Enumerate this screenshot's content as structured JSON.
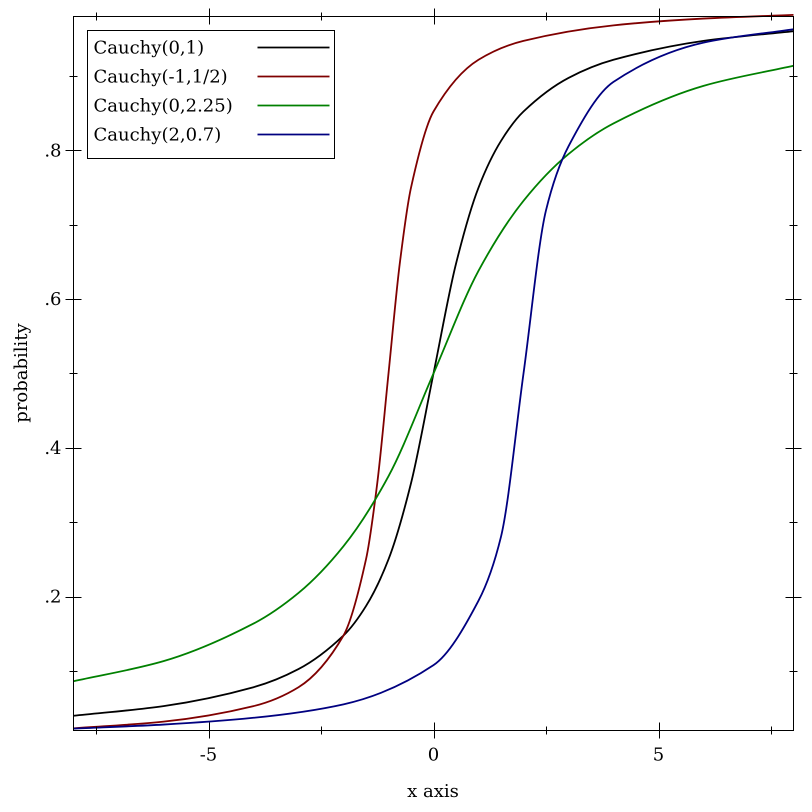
{
  "chart_data": {
    "type": "line",
    "title": "",
    "xlabel": "x axis",
    "ylabel": "probability",
    "xlim": [
      -8,
      8
    ],
    "ylim": [
      0.0198,
      0.9802
    ],
    "x_ticks_major": [
      -5,
      0,
      5
    ],
    "x_tick_labels": [
      "-5",
      "0",
      "5"
    ],
    "x_ticks_minor": [
      -7.5,
      -2.5,
      2.5,
      7.5
    ],
    "y_ticks_major": [
      0.2,
      0.4,
      0.6,
      0.8
    ],
    "y_tick_labels": [
      ".2",
      ".4",
      ".6",
      ".8"
    ],
    "y_ticks_minor": [
      0.1,
      0.3,
      0.5,
      0.7,
      0.9
    ],
    "grid": false,
    "legend_position": "top-left",
    "series": [
      {
        "name": "Cauchy(0,1)",
        "color": "#000000",
        "x": [
          -8,
          -6,
          -4,
          -3,
          -2,
          -1.5,
          -1,
          -0.5,
          0,
          0.5,
          1,
          1.5,
          2,
          3,
          4,
          6,
          8
        ],
        "values": [
          0.0396,
          0.0526,
          0.078,
          0.1024,
          0.1476,
          0.1872,
          0.25,
          0.3524,
          0.5,
          0.6476,
          0.75,
          0.8128,
          0.8524,
          0.8976,
          0.922,
          0.9474,
          0.9604
        ]
      },
      {
        "name": "Cauchy(-1,1/2)",
        "color": "#7f0000",
        "x": [
          -8,
          -6,
          -4,
          -3,
          -2,
          -1.5,
          -1.25,
          -1,
          -0.75,
          -0.5,
          0,
          1,
          2,
          4,
          6,
          8
        ],
        "values": [
          0.0227,
          0.0317,
          0.0526,
          0.078,
          0.1476,
          0.25,
          0.3524,
          0.5,
          0.6476,
          0.75,
          0.8524,
          0.922,
          0.9474,
          0.9683,
          0.9774,
          0.9824
        ]
      },
      {
        "name": "Cauchy(0,2.25)",
        "color": "#008000",
        "x": [
          -8,
          -6,
          -4,
          -3,
          -2,
          -1,
          0,
          1,
          2,
          3,
          4,
          6,
          8
        ],
        "values": [
          0.0861,
          0.1131,
          0.1636,
          0.2048,
          0.2677,
          0.3619,
          0.5,
          0.6381,
          0.7323,
          0.7952,
          0.8364,
          0.8869,
          0.9139
        ]
      },
      {
        "name": "Cauchy(2,0.7)",
        "color": "#000080",
        "x": [
          -8,
          -6,
          -4,
          -2,
          0,
          1,
          1.5,
          2,
          2.5,
          3,
          4,
          6,
          8
        ],
        "values": [
          0.0223,
          0.0278,
          0.0369,
          0.055,
          0.1077,
          0.1944,
          0.2805,
          0.5,
          0.7195,
          0.8056,
          0.8923,
          0.945,
          0.9631
        ]
      }
    ]
  }
}
